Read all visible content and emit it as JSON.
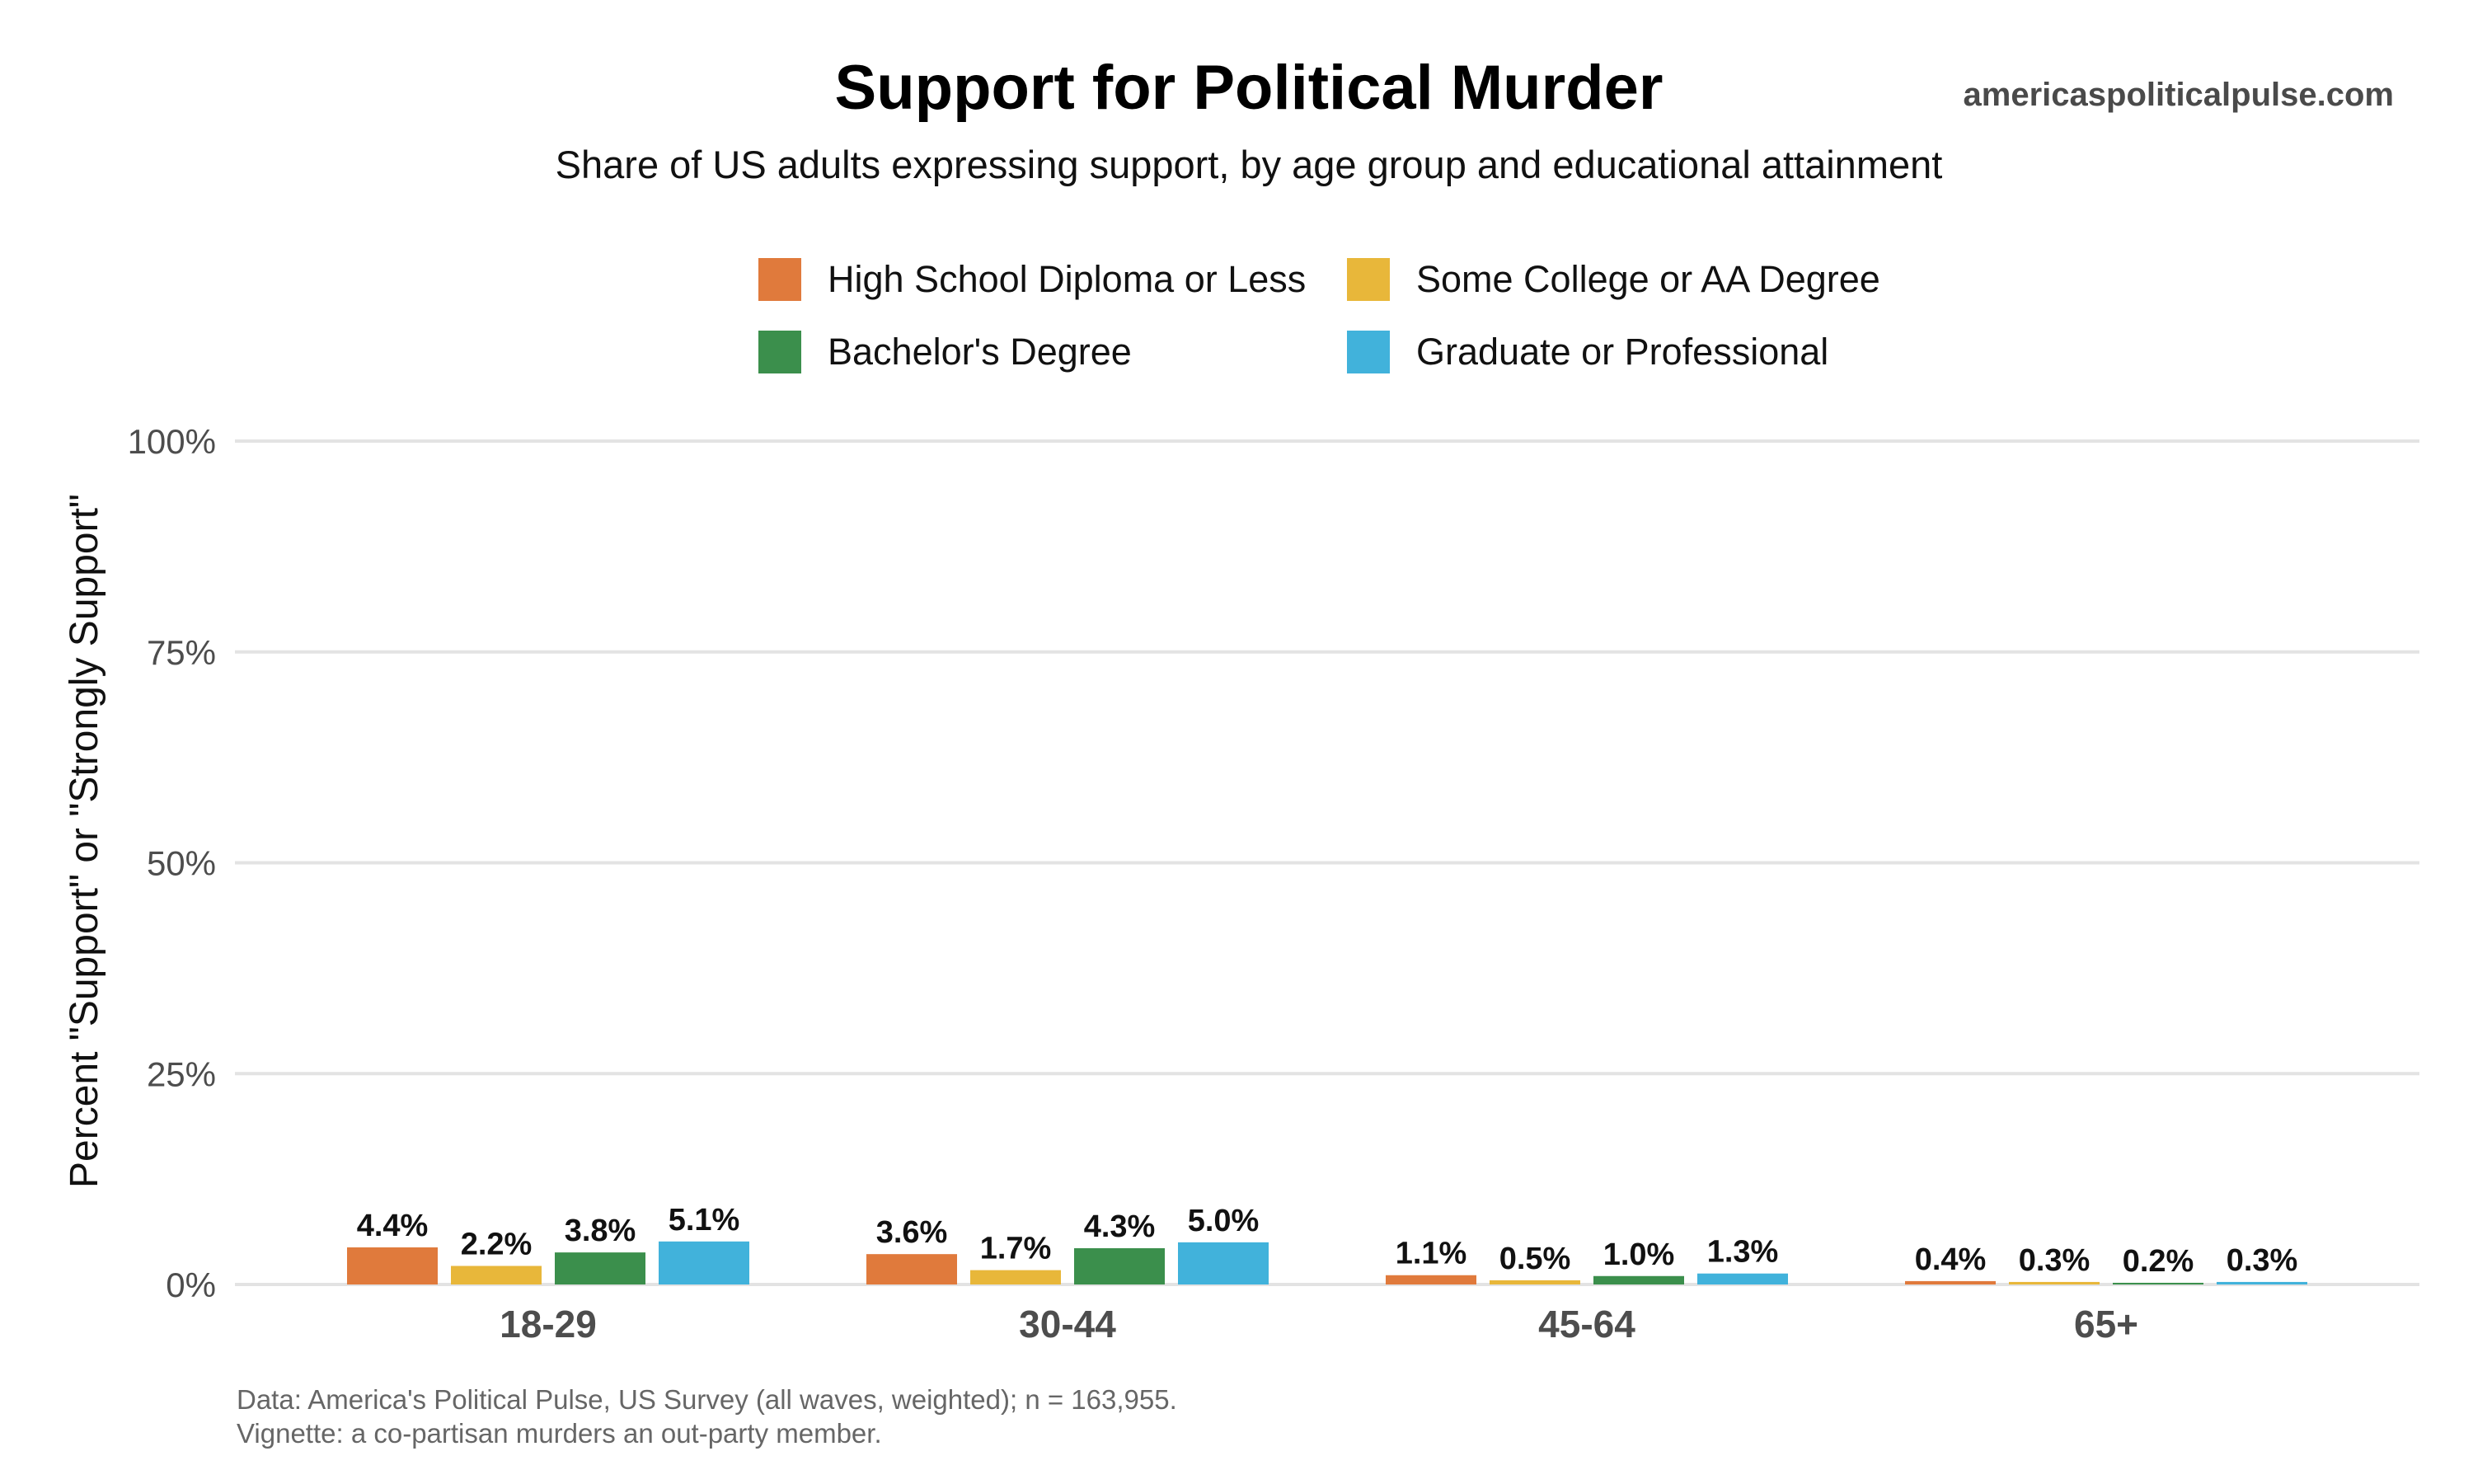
{
  "header": {
    "title": "Support for Political Murder",
    "subtitle": "Share of US adults expressing support, by age group and educational attainment",
    "watermark": "americaspoliticalpulse.com"
  },
  "footer": {
    "line1": "Data: America's Political Pulse, US Survey (all waves, weighted); n = 163,955.",
    "line2": "Vignette: a co-partisan murders an out-party member."
  },
  "chart_data": {
    "type": "bar",
    "title": "Support for Political Murder",
    "subtitle": "Share of US adults expressing support, by age group and educational attainment",
    "xlabel": "",
    "ylabel": "Percent \"Support\" or \"Strongly Support\"",
    "ylim": [
      0,
      100
    ],
    "yticks": [
      "0%",
      "25%",
      "50%",
      "75%",
      "100%"
    ],
    "ytick_values": [
      0,
      25,
      50,
      75,
      100
    ],
    "grid": true,
    "legend_position": "top",
    "categories": [
      "18-29",
      "30-44",
      "45-64",
      "65+"
    ],
    "series": [
      {
        "name": "High School Diploma or Less",
        "color": "#e07a3c",
        "values": [
          4.4,
          3.6,
          1.1,
          0.4
        ],
        "labels": [
          "4.4%",
          "3.6%",
          "1.1%",
          "0.4%"
        ]
      },
      {
        "name": "Some College or AA Degree",
        "color": "#e8b73a",
        "values": [
          2.2,
          1.7,
          0.5,
          0.3
        ],
        "labels": [
          "2.2%",
          "1.7%",
          "0.5%",
          "0.3%"
        ]
      },
      {
        "name": "Bachelor's Degree",
        "color": "#3b8f4c",
        "values": [
          3.8,
          4.3,
          1.0,
          0.2
        ],
        "labels": [
          "3.8%",
          "4.3%",
          "1.0%",
          "0.2%"
        ]
      },
      {
        "name": "Graduate or Professional",
        "color": "#41b2db",
        "values": [
          5.1,
          5.0,
          1.3,
          0.3
        ],
        "labels": [
          "5.1%",
          "5.0%",
          "1.3%",
          "0.3%"
        ]
      }
    ]
  }
}
